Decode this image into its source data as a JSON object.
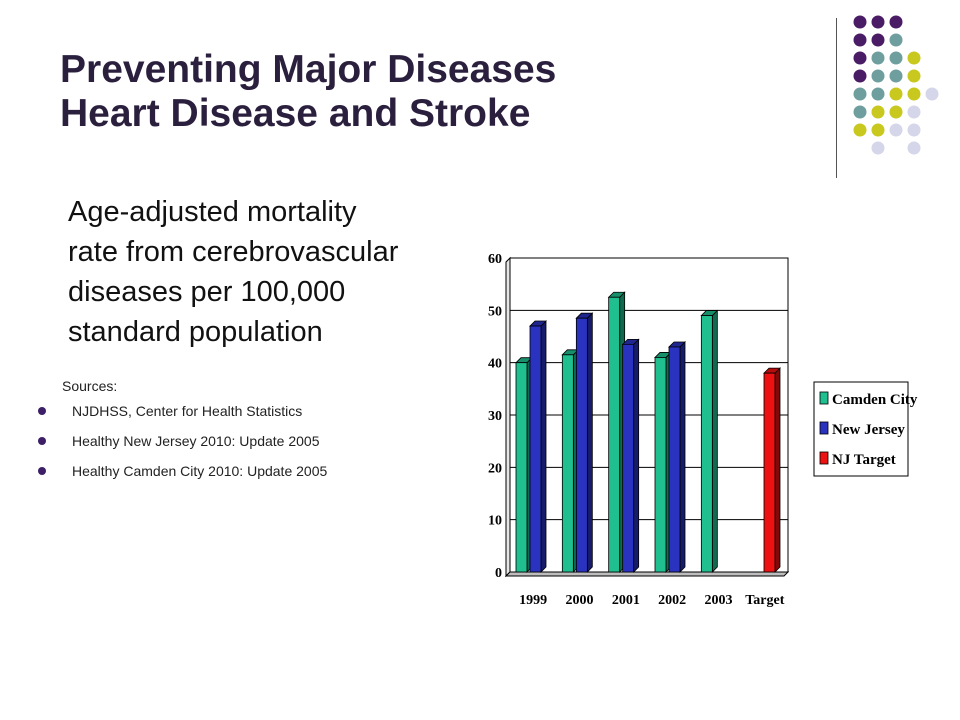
{
  "slide": {
    "title_line1": "Preventing Major Diseases",
    "title_line2": "Heart Disease and Stroke",
    "subtitle_line1": "Age-adjusted mortality",
    "subtitle_line2": "rate from cerebrovascular",
    "subtitle_line3": "diseases per 100,000",
    "subtitle_line4": "standard population",
    "sources_label": "Sources:",
    "sources": [
      "NJDHSS, Center for Health Statistics",
      "Healthy New Jersey 2010:  Update 2005",
      "Healthy Camden City 2010:  Update 2005"
    ]
  },
  "decoration": {
    "dot_colors": {
      "purple": "#4b1c66",
      "teal": "#6f9e9e",
      "yellow": "#c8c81e",
      "lavender": "#d5d6ea"
    }
  },
  "chart_data": {
    "type": "bar",
    "categories": [
      "1999",
      "2000",
      "2001",
      "2002",
      "2003",
      "Target"
    ],
    "series": [
      {
        "name": "Camden City",
        "color": "#1fbf8f",
        "values": [
          40,
          41.5,
          52.5,
          41,
          49,
          null
        ]
      },
      {
        "name": "New Jersey",
        "color": "#2a33c0",
        "values": [
          47,
          48.5,
          43.5,
          43,
          null,
          null
        ]
      },
      {
        "name": "NJ Target",
        "color": "#ee1111",
        "values": [
          null,
          null,
          null,
          null,
          null,
          38
        ]
      }
    ],
    "yticks": [
      "0",
      "10",
      "20",
      "30",
      "40",
      "50",
      "60"
    ],
    "ylim": [
      0,
      60
    ],
    "grid": true,
    "legend": "right"
  }
}
